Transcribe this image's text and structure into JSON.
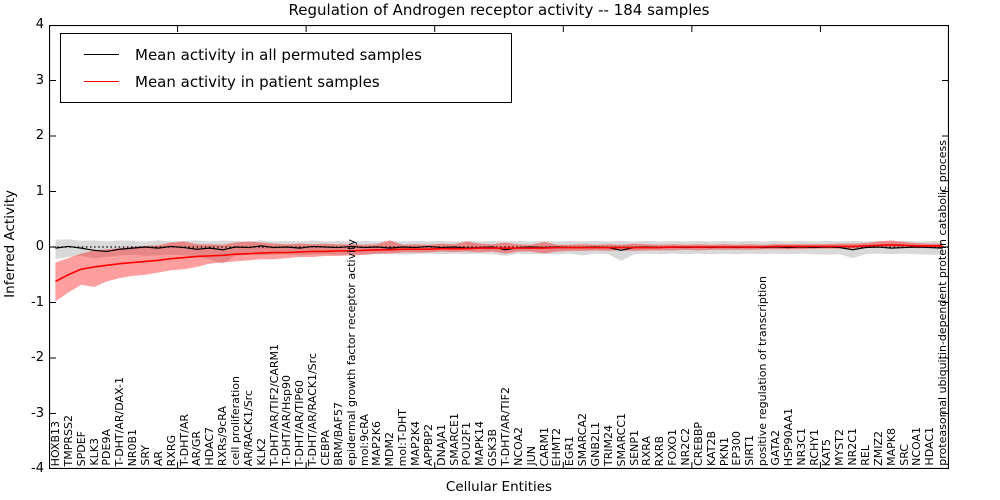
{
  "chart_data": {
    "type": "line",
    "title": "Regulation of Androgen receptor activity -- 184 samples",
    "xlabel": "Cellular Entities",
    "ylabel": "Inferred Activity",
    "ylim": [
      -4,
      4
    ],
    "yticks": [
      4,
      3,
      2,
      1,
      0,
      -1,
      -2,
      -3,
      -4
    ],
    "xtick_positions": [
      10,
      20,
      30,
      40,
      50,
      60
    ],
    "zero_line": true,
    "legend_position": "upper left",
    "grid": false,
    "colors": {
      "permuted_line": "#000000",
      "patient_line": "#ff0000",
      "permuted_band": "rgba(0,0,0,0.15)",
      "patient_band": "rgba(255,0,0,0.38)",
      "frame": "#000000"
    },
    "categories": [
      "HOXB13",
      "TMPRSS2",
      "SPDEF",
      "KLK3",
      "PDE9A",
      "T-DHT/AR/DAX-1",
      "NR0B1",
      "SRY",
      "AR",
      "RXRG",
      "T-DHT/AR",
      "AR/GR",
      "HDAC7",
      "RXRs/9cRA",
      "cell proliferation",
      "AR/RACK1/Src",
      "KLK2",
      "T-DHT/AR/TIF2/CARM1",
      "T-DHT/AR/Hsp90",
      "T-DHT/AR/TIP60",
      "T-DHT/AR/RACK1/Src",
      "CEBPA",
      "BRM/BAF57",
      "epidermal growth factor receptor activity",
      "mol:9cRA",
      "MAP2K6",
      "MDM2",
      "mol:T-DHT",
      "MAP2K4",
      "APPBP2",
      "DNAJA1",
      "SMARCE1",
      "POU2F1",
      "MAPK14",
      "GSK3B",
      "T-DHT/AR/TIF2",
      "NCOA2",
      "JUN",
      "CARM1",
      "EHMT2",
      "EGR1",
      "SMARCA2",
      "GNB2L1",
      "TRIM24",
      "SMARCC1",
      "SENP1",
      "RXRA",
      "RXRB",
      "FOXO1",
      "NR2C2",
      "CREBBP",
      "KAT2B",
      "PKN1",
      "EP300",
      "SIRT1",
      "positive regulation of transcription",
      "GATA2",
      "HSP90AA1",
      "NR3C1",
      "RCHY1",
      "KAT5",
      "MYST2",
      "NR2C1",
      "REL",
      "ZMIZ2",
      "MAPK8",
      "SRC",
      "NCOA1",
      "HDAC1",
      "proteasomal ubiquitin-dependent protein catabolic process"
    ],
    "series": [
      {
        "name": "Mean activity in all permuted samples",
        "color": "#000000",
        "band_color": "rgba(0,0,0,0.15)",
        "values": [
          -0.02,
          0.01,
          -0.02,
          -0.06,
          -0.08,
          -0.04,
          -0.02,
          0.0,
          -0.02,
          0.01,
          -0.01,
          -0.04,
          -0.02,
          -0.05,
          0.0,
          -0.01,
          0.02,
          -0.01,
          0.0,
          -0.02,
          0.01,
          0.0,
          -0.01,
          0.01,
          -0.01,
          0.0,
          -0.02,
          0.0,
          -0.01,
          0.01,
          -0.01,
          0.0,
          -0.02,
          -0.01,
          0.0,
          -0.05,
          -0.01,
          0.0,
          -0.01,
          0.0,
          -0.01,
          -0.01,
          0.0,
          -0.01,
          -0.06,
          -0.01,
          0.0,
          -0.01,
          0.0,
          -0.01,
          0.0,
          -0.01,
          0.0,
          -0.01,
          0.0,
          -0.01,
          0.0,
          -0.01,
          0.0,
          -0.01,
          0.0,
          -0.01,
          -0.05,
          -0.01,
          0.0,
          -0.02,
          -0.01,
          0.0,
          -0.01,
          -0.02
        ],
        "band_lower": [
          -0.22,
          -0.18,
          -0.16,
          -0.2,
          -0.18,
          -0.15,
          -0.14,
          -0.16,
          -0.15,
          -0.14,
          -0.15,
          -0.18,
          -0.22,
          -0.3,
          -0.16,
          -0.14,
          -0.15,
          -0.14,
          -0.13,
          -0.15,
          -0.14,
          -0.13,
          -0.14,
          -0.13,
          -0.14,
          -0.13,
          -0.12,
          -0.14,
          -0.13,
          -0.12,
          -0.13,
          -0.12,
          -0.13,
          -0.12,
          -0.13,
          -0.16,
          -0.12,
          -0.13,
          -0.12,
          -0.13,
          -0.12,
          -0.15,
          -0.12,
          -0.13,
          -0.25,
          -0.13,
          -0.12,
          -0.13,
          -0.12,
          -0.13,
          -0.12,
          -0.13,
          -0.12,
          -0.13,
          -0.12,
          -0.13,
          -0.12,
          -0.13,
          -0.12,
          -0.13,
          -0.14,
          -0.13,
          -0.2,
          -0.13,
          -0.12,
          -0.13,
          -0.12,
          -0.13,
          -0.14,
          -0.14
        ],
        "band_upper": [
          0.13,
          0.14,
          0.11,
          0.12,
          0.1,
          0.12,
          0.11,
          0.1,
          0.12,
          0.1,
          0.11,
          0.12,
          0.1,
          0.12,
          0.11,
          0.1,
          0.12,
          0.1,
          0.11,
          0.1,
          0.12,
          0.1,
          0.11,
          0.1,
          0.11,
          0.1,
          0.11,
          0.1,
          0.11,
          0.1,
          0.11,
          0.1,
          0.11,
          0.1,
          0.11,
          0.1,
          0.11,
          0.1,
          0.11,
          0.1,
          0.11,
          0.1,
          0.11,
          0.1,
          0.11,
          0.1,
          0.11,
          0.1,
          0.11,
          0.1,
          0.11,
          0.1,
          0.11,
          0.1,
          0.11,
          0.1,
          0.11,
          0.1,
          0.11,
          0.1,
          0.11,
          0.1,
          0.11,
          0.1,
          0.11,
          0.1,
          0.11,
          0.1,
          0.11,
          0.1
        ]
      },
      {
        "name": "Mean activity in patient samples",
        "color": "#ff0000",
        "band_color": "rgba(255,0,0,0.38)",
        "values": [
          -0.62,
          -0.5,
          -0.4,
          -0.36,
          -0.33,
          -0.3,
          -0.28,
          -0.26,
          -0.24,
          -0.21,
          -0.19,
          -0.17,
          -0.16,
          -0.15,
          -0.13,
          -0.12,
          -0.11,
          -0.1,
          -0.1,
          -0.09,
          -0.08,
          -0.08,
          -0.07,
          -0.07,
          -0.06,
          -0.05,
          -0.05,
          -0.04,
          -0.04,
          -0.04,
          -0.03,
          -0.03,
          -0.03,
          -0.02,
          -0.02,
          -0.02,
          -0.02,
          -0.02,
          -0.02,
          -0.01,
          -0.01,
          -0.01,
          -0.01,
          -0.01,
          -0.01,
          -0.01,
          -0.01,
          -0.01,
          0.0,
          0.0,
          0.0,
          0.0,
          0.0,
          0.0,
          0.0,
          0.0,
          0.01,
          0.01,
          0.01,
          0.01,
          0.01,
          0.01,
          0.01,
          0.02,
          0.03,
          0.04,
          0.03,
          0.02,
          0.02,
          0.02
        ],
        "band_lower": [
          -0.98,
          -0.82,
          -0.68,
          -0.72,
          -0.62,
          -0.56,
          -0.52,
          -0.5,
          -0.46,
          -0.42,
          -0.4,
          -0.36,
          -0.3,
          -0.28,
          -0.26,
          -0.24,
          -0.22,
          -0.22,
          -0.2,
          -0.18,
          -0.18,
          -0.16,
          -0.16,
          -0.15,
          -0.14,
          -0.12,
          -0.12,
          -0.1,
          -0.1,
          -0.1,
          -0.08,
          -0.09,
          -0.08,
          -0.1,
          -0.08,
          -0.12,
          -0.08,
          -0.08,
          -0.12,
          -0.08,
          -0.07,
          -0.07,
          -0.06,
          -0.07,
          -0.06,
          -0.07,
          -0.06,
          -0.06,
          -0.06,
          -0.05,
          -0.06,
          -0.05,
          -0.05,
          -0.05,
          -0.05,
          -0.04,
          -0.04,
          -0.04,
          -0.04,
          -0.03,
          -0.03,
          -0.03,
          -0.03,
          -0.02,
          -0.01,
          0.0,
          -0.01,
          -0.02,
          -0.02,
          -0.02
        ],
        "band_upper": [
          -0.28,
          -0.2,
          -0.12,
          -0.06,
          -0.04,
          -0.02,
          0.0,
          0.02,
          0.03,
          0.08,
          0.1,
          0.05,
          0.05,
          0.04,
          0.08,
          0.1,
          0.08,
          0.06,
          0.05,
          0.06,
          0.05,
          0.06,
          0.05,
          0.05,
          0.04,
          0.05,
          0.12,
          0.04,
          0.05,
          0.04,
          0.06,
          0.05,
          0.1,
          0.06,
          0.05,
          0.08,
          0.05,
          0.04,
          0.09,
          0.04,
          0.04,
          0.05,
          0.04,
          0.05,
          0.04,
          0.06,
          0.05,
          0.04,
          0.05,
          0.04,
          0.05,
          0.04,
          0.05,
          0.04,
          0.05,
          0.04,
          0.05,
          0.05,
          0.05,
          0.05,
          0.05,
          0.06,
          0.06,
          0.07,
          0.1,
          0.12,
          0.09,
          0.07,
          0.06,
          0.06
        ]
      }
    ]
  }
}
